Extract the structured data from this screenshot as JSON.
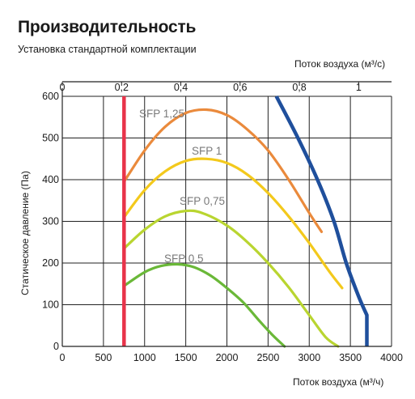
{
  "title": "Производительность",
  "subtitle": "Установка стандартной комплектации",
  "chart_data": {
    "type": "line",
    "title": "Производительность",
    "subtitle": "Установка стандартной комплектации",
    "xlabel": "Поток воздуха (м³/ч)",
    "x2label": "Поток воздуха (м³/с)",
    "ylabel": "Статическое давление (Па)",
    "xlim": [
      0,
      4000
    ],
    "ylim": [
      0,
      600
    ],
    "x2lim": [
      0,
      1.111
    ],
    "xticks": [
      "0",
      "500",
      "1000",
      "1500",
      "2000",
      "2500",
      "3000",
      "3500",
      "4000"
    ],
    "yticks": [
      "0",
      "100",
      "200",
      "300",
      "400",
      "500",
      "600"
    ],
    "x2ticks": [
      "0",
      "0,2",
      "0,4",
      "0,6",
      "0,8",
      "1"
    ],
    "grid": true,
    "series": [
      {
        "name": "SFP 1,25",
        "color": "#ea8a3c",
        "x": [
          750,
          1000,
          1250,
          1500,
          1750,
          2000,
          2250,
          2500,
          2750,
          3000,
          3150
        ],
        "y": [
          395,
          470,
          527,
          560,
          568,
          555,
          520,
          470,
          400,
          320,
          275
        ]
      },
      {
        "name": "SFP 1",
        "color": "#f3c91c",
        "x": [
          750,
          1000,
          1250,
          1500,
          1750,
          2000,
          2250,
          2500,
          2750,
          3000,
          3250,
          3400
        ],
        "y": [
          310,
          375,
          420,
          445,
          450,
          440,
          412,
          368,
          312,
          248,
          178,
          140
        ]
      },
      {
        "name": "SFP 0,75",
        "color": "#b9d530",
        "x": [
          750,
          1000,
          1250,
          1500,
          1700,
          2000,
          2250,
          2500,
          2750,
          3000,
          3200,
          3350
        ],
        "y": [
          235,
          280,
          312,
          325,
          320,
          290,
          250,
          200,
          142,
          75,
          22,
          0
        ]
      },
      {
        "name": "SFP 0,5",
        "color": "#6ab838",
        "x": [
          750,
          1000,
          1200,
          1400,
          1600,
          1800,
          2000,
          2200,
          2400,
          2550,
          2700
        ],
        "y": [
          145,
          178,
          193,
          197,
          190,
          170,
          140,
          105,
          60,
          28,
          0
        ]
      }
    ],
    "limits": [
      {
        "name": "",
        "color": "#e8334a",
        "x": [
          750,
          750
        ],
        "y": [
          0,
          600
        ]
      },
      {
        "name": "",
        "color": "#1f4f9c",
        "x": [
          2600,
          2850,
          3100,
          3300,
          3450,
          3600,
          3700,
          3700
        ],
        "y": [
          600,
          505,
          400,
          300,
          200,
          120,
          75,
          0
        ]
      }
    ]
  }
}
